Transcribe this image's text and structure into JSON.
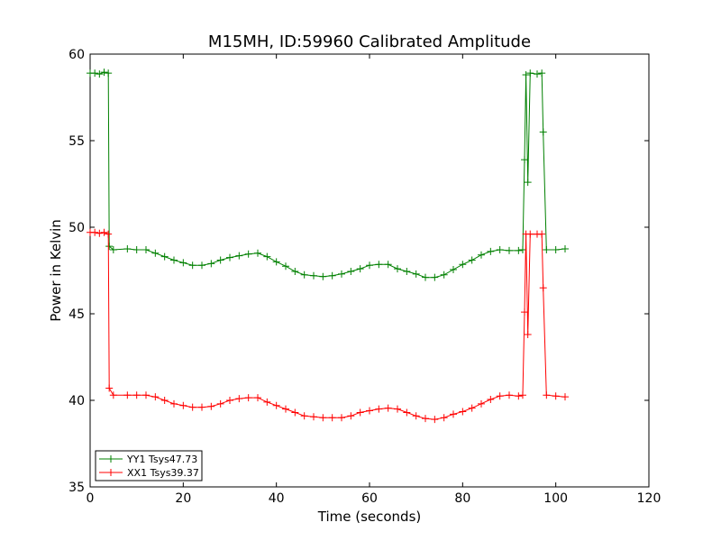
{
  "chart_data": {
    "type": "line",
    "title": "M15MH, ID:59960 Calibrated Amplitude",
    "xlabel": "Time (seconds)",
    "ylabel": "Power in Kelvin",
    "xlim": [
      0,
      120
    ],
    "ylim": [
      35,
      60
    ],
    "xticks": [
      0,
      20,
      40,
      60,
      80,
      100,
      120
    ],
    "yticks": [
      35,
      40,
      45,
      50,
      55,
      60
    ],
    "grid": false,
    "legend_position": "lower-left",
    "marker": "plus",
    "series": [
      {
        "name": "YY1 Tsys47.73",
        "color": "#008000",
        "x": [
          0,
          1,
          2,
          3,
          3.9,
          4.1,
          5,
          8,
          10,
          12,
          14,
          16,
          18,
          20,
          22,
          24,
          26,
          28,
          30,
          32,
          34,
          36,
          38,
          40,
          42,
          44,
          46,
          48,
          50,
          52,
          54,
          56,
          58,
          60,
          62,
          64,
          66,
          68,
          70,
          72,
          74,
          76,
          78,
          80,
          82,
          84,
          86,
          88,
          90,
          92,
          92.9,
          93.3,
          93.6,
          94.0,
          94.5,
          96,
          97,
          97.3,
          98,
          100,
          102
        ],
        "y": [
          58.9,
          58.9,
          58.85,
          58.95,
          58.9,
          48.9,
          48.7,
          48.75,
          48.7,
          48.7,
          48.5,
          48.3,
          48.1,
          47.95,
          47.8,
          47.8,
          47.9,
          48.1,
          48.25,
          48.35,
          48.45,
          48.5,
          48.3,
          48.0,
          47.75,
          47.45,
          47.25,
          47.2,
          47.15,
          47.2,
          47.3,
          47.45,
          47.6,
          47.8,
          47.85,
          47.85,
          47.6,
          47.45,
          47.3,
          47.1,
          47.1,
          47.25,
          47.55,
          47.85,
          48.1,
          48.4,
          48.6,
          48.7,
          48.65,
          48.65,
          48.7,
          53.9,
          58.8,
          52.6,
          58.9,
          58.85,
          58.9,
          55.5,
          48.7,
          48.7,
          48.75
        ]
      },
      {
        "name": "XX1 Tsys39.37",
        "color": "#ff0000",
        "x": [
          0,
          1,
          2,
          3,
          3.9,
          4.1,
          5,
          8,
          10,
          12,
          14,
          16,
          18,
          20,
          22,
          24,
          26,
          28,
          30,
          32,
          34,
          36,
          38,
          40,
          42,
          44,
          46,
          48,
          50,
          52,
          54,
          56,
          58,
          60,
          62,
          64,
          66,
          68,
          70,
          72,
          74,
          76,
          78,
          80,
          82,
          84,
          86,
          88,
          90,
          92,
          92.9,
          93.3,
          93.6,
          94.0,
          94.5,
          96,
          97,
          97.3,
          98,
          100,
          102
        ],
        "y": [
          49.7,
          49.7,
          49.65,
          49.7,
          49.6,
          40.7,
          40.3,
          40.3,
          40.3,
          40.3,
          40.2,
          40.0,
          39.8,
          39.7,
          39.6,
          39.6,
          39.65,
          39.8,
          40.0,
          40.1,
          40.15,
          40.15,
          39.9,
          39.7,
          39.5,
          39.3,
          39.1,
          39.05,
          39.0,
          39.0,
          39.0,
          39.1,
          39.3,
          39.4,
          39.5,
          39.55,
          39.5,
          39.3,
          39.1,
          38.95,
          38.9,
          39.0,
          39.2,
          39.35,
          39.55,
          39.8,
          40.05,
          40.25,
          40.3,
          40.25,
          40.3,
          45.1,
          49.6,
          43.8,
          49.6,
          49.6,
          49.6,
          46.5,
          40.3,
          40.25,
          40.2
        ]
      }
    ]
  }
}
